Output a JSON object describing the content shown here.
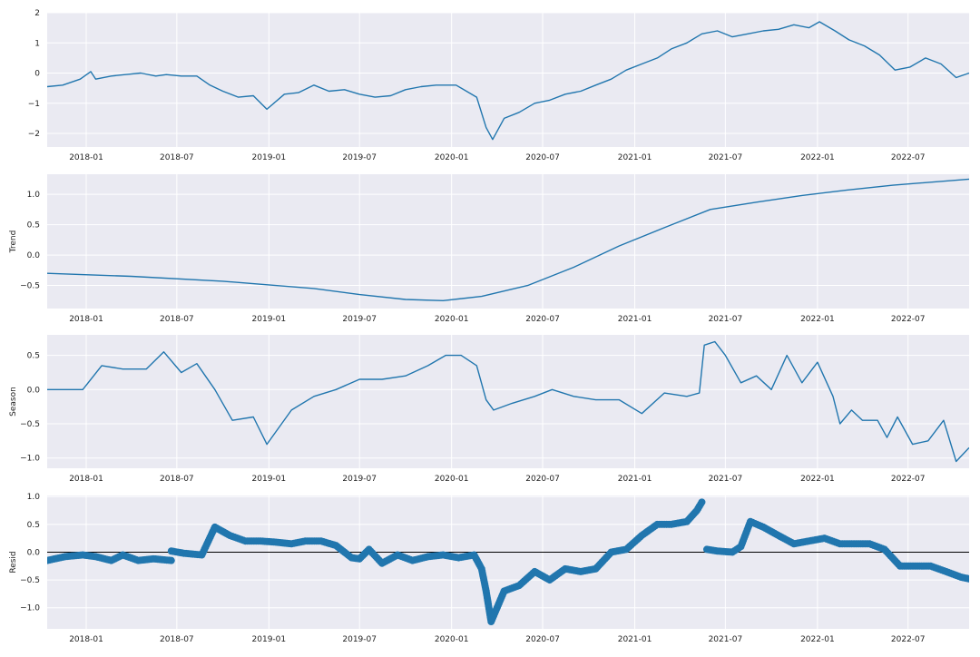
{
  "colors": {
    "background": "#eaeaf2",
    "grid": "#ffffff",
    "line": "#2176ae",
    "zero_line": "#000000"
  },
  "x_ticks": [
    "2018-01",
    "2018-07",
    "2019-01",
    "2019-07",
    "2020-01",
    "2020-07",
    "2021-01",
    "2021-07",
    "2022-01",
    "2022-07"
  ],
  "chart_data": [
    {
      "type": "line",
      "ylabel": "",
      "ylim": [
        -2.45,
        2.0
      ],
      "yticks": [
        -2,
        -1,
        0,
        1,
        2
      ],
      "ytick_labels": [
        "−2",
        "−1",
        "0",
        "1",
        "2"
      ],
      "xlim": [
        "2017-10-15",
        "2022-10-31"
      ],
      "grid": true,
      "series": [
        {
          "x": [
            "2017-10-15",
            "2017-11-15",
            "2017-12-20",
            "2018-01-10",
            "2018-01-20",
            "2018-02-20",
            "2018-03-20",
            "2018-04-20",
            "2018-05-20",
            "2018-06-10",
            "2018-07-10",
            "2018-08-10",
            "2018-09-05",
            "2018-10-01",
            "2018-11-01",
            "2018-12-01",
            "2018-12-28",
            "2019-02-01",
            "2019-03-01",
            "2019-04-01",
            "2019-05-01",
            "2019-06-01",
            "2019-07-01",
            "2019-08-01",
            "2019-09-01",
            "2019-10-01",
            "2019-11-01",
            "2019-12-01",
            "2020-01-10",
            "2020-02-20",
            "2020-03-10",
            "2020-03-23",
            "2020-04-15",
            "2020-05-15",
            "2020-06-15",
            "2020-07-15",
            "2020-08-15",
            "2020-09-15",
            "2020-10-15",
            "2020-11-15",
            "2020-12-15",
            "2021-01-15",
            "2021-02-15",
            "2021-03-15",
            "2021-04-15",
            "2021-05-15",
            "2021-06-15",
            "2021-07-15",
            "2021-08-15",
            "2021-09-15",
            "2021-10-15",
            "2021-11-15",
            "2021-12-15",
            "2022-01-05",
            "2022-02-05",
            "2022-03-05",
            "2022-04-05",
            "2022-05-05",
            "2022-06-05",
            "2022-07-05",
            "2022-08-05",
            "2022-09-05",
            "2022-10-05",
            "2022-10-31"
          ],
          "y": [
            -0.45,
            -0.4,
            -0.2,
            0.05,
            -0.2,
            -0.1,
            -0.05,
            0.0,
            -0.1,
            -0.05,
            -0.1,
            -0.1,
            -0.4,
            -0.6,
            -0.8,
            -0.75,
            -1.2,
            -0.7,
            -0.65,
            -0.4,
            -0.6,
            -0.55,
            -0.7,
            -0.8,
            -0.75,
            -0.55,
            -0.45,
            -0.4,
            -0.4,
            -0.8,
            -1.8,
            -2.2,
            -1.5,
            -1.3,
            -1.0,
            -0.9,
            -0.7,
            -0.6,
            -0.4,
            -0.2,
            0.1,
            0.3,
            0.5,
            0.8,
            1.0,
            1.3,
            1.4,
            1.2,
            1.3,
            1.4,
            1.45,
            1.6,
            1.5,
            1.7,
            1.4,
            1.1,
            0.9,
            0.6,
            0.1,
            0.2,
            0.5,
            0.3,
            -0.15,
            0.0
          ]
        }
      ]
    },
    {
      "type": "line",
      "ylabel": "Trend",
      "ylim": [
        -0.88,
        1.33
      ],
      "yticks": [
        -0.5,
        0.0,
        0.5,
        1.0
      ],
      "ytick_labels": [
        "−0.5",
        "0.0",
        "0.5",
        "1.0"
      ],
      "xlim": [
        "2017-10-15",
        "2022-10-31"
      ],
      "grid": true,
      "series": [
        {
          "x": [
            "2017-10-15",
            "2018-04-01",
            "2018-10-01",
            "2019-04-01",
            "2019-07-01",
            "2019-10-01",
            "2019-12-15",
            "2020-03-01",
            "2020-06-01",
            "2020-09-01",
            "2020-12-01",
            "2021-03-01",
            "2021-06-01",
            "2021-09-01",
            "2021-12-01",
            "2022-03-01",
            "2022-06-01",
            "2022-10-31"
          ],
          "y": [
            -0.3,
            -0.35,
            -0.43,
            -0.55,
            -0.65,
            -0.73,
            -0.75,
            -0.68,
            -0.5,
            -0.2,
            0.15,
            0.45,
            0.75,
            0.87,
            0.98,
            1.07,
            1.15,
            1.25
          ]
        }
      ]
    },
    {
      "type": "line",
      "ylabel": "Season",
      "ylim": [
        -1.15,
        0.8
      ],
      "yticks": [
        -1.0,
        -0.5,
        0.0,
        0.5
      ],
      "ytick_labels": [
        "−1.0",
        "−0.5",
        "0.0",
        "0.5"
      ],
      "xlim": [
        "2017-10-15",
        "2022-10-31"
      ],
      "grid": true,
      "series": [
        {
          "x": [
            "2017-10-15",
            "2017-11-20",
            "2017-12-25",
            "2018-02-01",
            "2018-03-15",
            "2018-05-01",
            "2018-06-05",
            "2018-07-10",
            "2018-08-10",
            "2018-09-15",
            "2018-10-20",
            "2018-12-01",
            "2018-12-28",
            "2019-02-15",
            "2019-04-01",
            "2019-05-15",
            "2019-07-01",
            "2019-08-15",
            "2019-10-01",
            "2019-11-15",
            "2019-12-20",
            "2020-01-20",
            "2020-02-20",
            "2020-03-10",
            "2020-03-25",
            "2020-05-01",
            "2020-06-15",
            "2020-07-20",
            "2020-09-01",
            "2020-10-15",
            "2020-12-01",
            "2021-01-15",
            "2021-03-01",
            "2021-04-15",
            "2021-05-10",
            "2021-05-20",
            "2021-06-10",
            "2021-07-01",
            "2021-08-01",
            "2021-09-01",
            "2021-10-01",
            "2021-11-01",
            "2021-12-01",
            "2022-01-01",
            "2022-02-01",
            "2022-02-15",
            "2022-03-10",
            "2022-04-01",
            "2022-05-01",
            "2022-05-20",
            "2022-06-10",
            "2022-07-10",
            "2022-08-10",
            "2022-09-10",
            "2022-10-05",
            "2022-10-31"
          ],
          "y": [
            0.0,
            0.0,
            0.0,
            0.35,
            0.3,
            0.3,
            0.55,
            0.25,
            0.38,
            0.0,
            -0.45,
            -0.4,
            -0.8,
            -0.3,
            -0.1,
            0.0,
            0.15,
            0.15,
            0.2,
            0.35,
            0.5,
            0.5,
            0.35,
            -0.15,
            -0.3,
            -0.2,
            -0.1,
            0.0,
            -0.1,
            -0.15,
            -0.15,
            -0.35,
            -0.05,
            -0.1,
            -0.05,
            0.65,
            0.7,
            0.5,
            0.1,
            0.2,
            0.0,
            0.5,
            0.1,
            0.4,
            -0.1,
            -0.5,
            -0.3,
            -0.45,
            -0.45,
            -0.7,
            -0.4,
            -0.8,
            -0.75,
            -0.45,
            -1.05,
            -0.85
          ]
        }
      ]
    },
    {
      "type": "scatter",
      "ylabel": "Resid",
      "ylim": [
        -1.38,
        1.02
      ],
      "yticks": [
        -1.0,
        -0.5,
        0.0,
        0.5,
        1.0
      ],
      "ytick_labels": [
        "−1.0",
        "−0.5",
        "0.0",
        "0.5",
        "1.0"
      ],
      "xlim": [
        "2017-10-15",
        "2022-10-31"
      ],
      "grid": true,
      "zero_line": true,
      "series": [
        {
          "x": [
            "2017-10-15",
            "2017-11-20",
            "2017-12-25",
            "2018-01-20",
            "2018-02-20",
            "2018-03-15",
            "2018-04-15",
            "2018-05-15",
            "2018-06-20"
          ],
          "y": [
            -0.15,
            -0.08,
            -0.05,
            -0.08,
            -0.15,
            -0.05,
            -0.15,
            -0.12,
            -0.15
          ]
        },
        {
          "x": [
            "2018-06-20",
            "2018-07-15",
            "2018-08-20",
            "2018-09-15",
            "2018-10-15",
            "2018-11-15",
            "2018-12-15",
            "2019-01-15",
            "2019-02-15",
            "2019-03-15",
            "2019-04-15",
            "2019-05-15",
            "2019-06-15",
            "2019-07-01",
            "2019-07-20",
            "2019-08-15",
            "2019-09-15",
            "2019-10-15",
            "2019-11-15",
            "2019-12-15",
            "2020-01-15",
            "2020-02-15",
            "2020-03-01",
            "2020-03-10",
            "2020-03-20",
            "2020-04-15",
            "2020-05-15",
            "2020-06-15",
            "2020-07-15",
            "2020-08-15",
            "2020-09-15",
            "2020-10-15",
            "2020-11-15",
            "2020-12-15",
            "2021-01-15",
            "2021-02-15",
            "2021-03-15",
            "2021-04-15",
            "2021-05-05",
            "2021-05-15"
          ],
          "y": [
            0.02,
            -0.02,
            -0.05,
            0.45,
            0.3,
            0.2,
            0.2,
            0.18,
            0.15,
            0.2,
            0.2,
            0.12,
            -0.1,
            -0.12,
            0.05,
            -0.2,
            -0.05,
            -0.15,
            -0.08,
            -0.05,
            -0.1,
            -0.05,
            -0.3,
            -0.7,
            -1.25,
            -0.7,
            -0.6,
            -0.35,
            -0.5,
            -0.3,
            -0.35,
            -0.3,
            0.0,
            0.05,
            0.3,
            0.5,
            0.5,
            0.55,
            0.75,
            0.9
          ]
        },
        {
          "x": [
            "2021-05-25",
            "2021-06-15",
            "2021-07-15",
            "2021-08-01",
            "2021-08-20",
            "2021-09-15",
            "2021-10-15",
            "2021-11-15",
            "2021-12-15",
            "2022-01-15",
            "2022-02-15",
            "2022-03-15",
            "2022-04-15",
            "2022-05-15",
            "2022-06-15",
            "2022-07-15",
            "2022-08-15",
            "2022-09-15",
            "2022-10-15",
            "2022-10-31"
          ],
          "y": [
            0.05,
            0.02,
            0.0,
            0.1,
            0.55,
            0.45,
            0.3,
            0.15,
            0.2,
            0.25,
            0.15,
            0.15,
            0.15,
            0.05,
            -0.25,
            -0.25,
            -0.25,
            -0.35,
            -0.45,
            -0.48
          ]
        }
      ]
    }
  ]
}
